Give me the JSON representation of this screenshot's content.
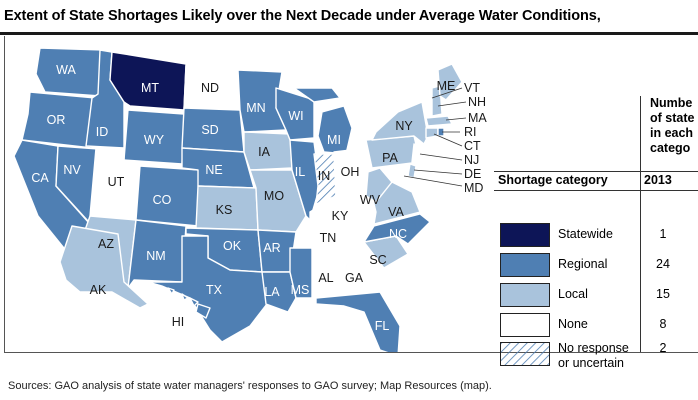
{
  "title": "Extent of State Shortages Likely over the Next Decade under Average Water Conditions,",
  "colors": {
    "statewide": "#0d1557",
    "regional": "#4f7fb3",
    "local": "#a9c3dc",
    "none": "#ffffff",
    "no_response": "hatched"
  },
  "states": {
    "WA": "WA",
    "OR": "OR",
    "CA": "CA",
    "ID": "ID",
    "NV": "NV",
    "MT": "MT",
    "WY": "WY",
    "UT": "UT",
    "AZ": "AZ",
    "CO": "CO",
    "NM": "NM",
    "ND": "ND",
    "SD": "SD",
    "NE": "NE",
    "KS": "KS",
    "OK": "OK",
    "TX": "TX",
    "MN": "MN",
    "IA": "IA",
    "MO": "MO",
    "AR": "AR",
    "LA": "LA",
    "WI": "WI",
    "IL": "IL",
    "MI": "MI",
    "IN": "IN",
    "OH": "OH",
    "KY": "KY",
    "TN": "TN",
    "MS": "MS",
    "AL": "AL",
    "GA": "GA",
    "FL": "FL",
    "SC": "SC",
    "NC": "NC",
    "VA": "VA",
    "WV": "WV",
    "PA": "PA",
    "NY": "NY",
    "ME": "ME",
    "AK": "AK",
    "HI": "HI",
    "VT": "VT",
    "NH": "NH",
    "MA": "MA",
    "RI": "RI",
    "CT": "CT",
    "NJ": "NJ",
    "DE": "DE",
    "MD": "MD"
  },
  "legend": {
    "column_header": [
      "Numbe",
      "of state",
      "in each",
      "catego"
    ],
    "category_header": "Shortage category",
    "year_header": "2013",
    "rows": [
      {
        "label": "Statewide",
        "count": "1"
      },
      {
        "label": "Regional",
        "count": "24"
      },
      {
        "label": "Local",
        "count": "15"
      },
      {
        "label": "None",
        "count": "8"
      },
      {
        "label_line1": "No response",
        "label_line2": "or uncertain",
        "count": "2"
      }
    ]
  },
  "source": "Sources: GAO analysis of state water managers' responses to GAO survey; Map Resources (map)."
}
